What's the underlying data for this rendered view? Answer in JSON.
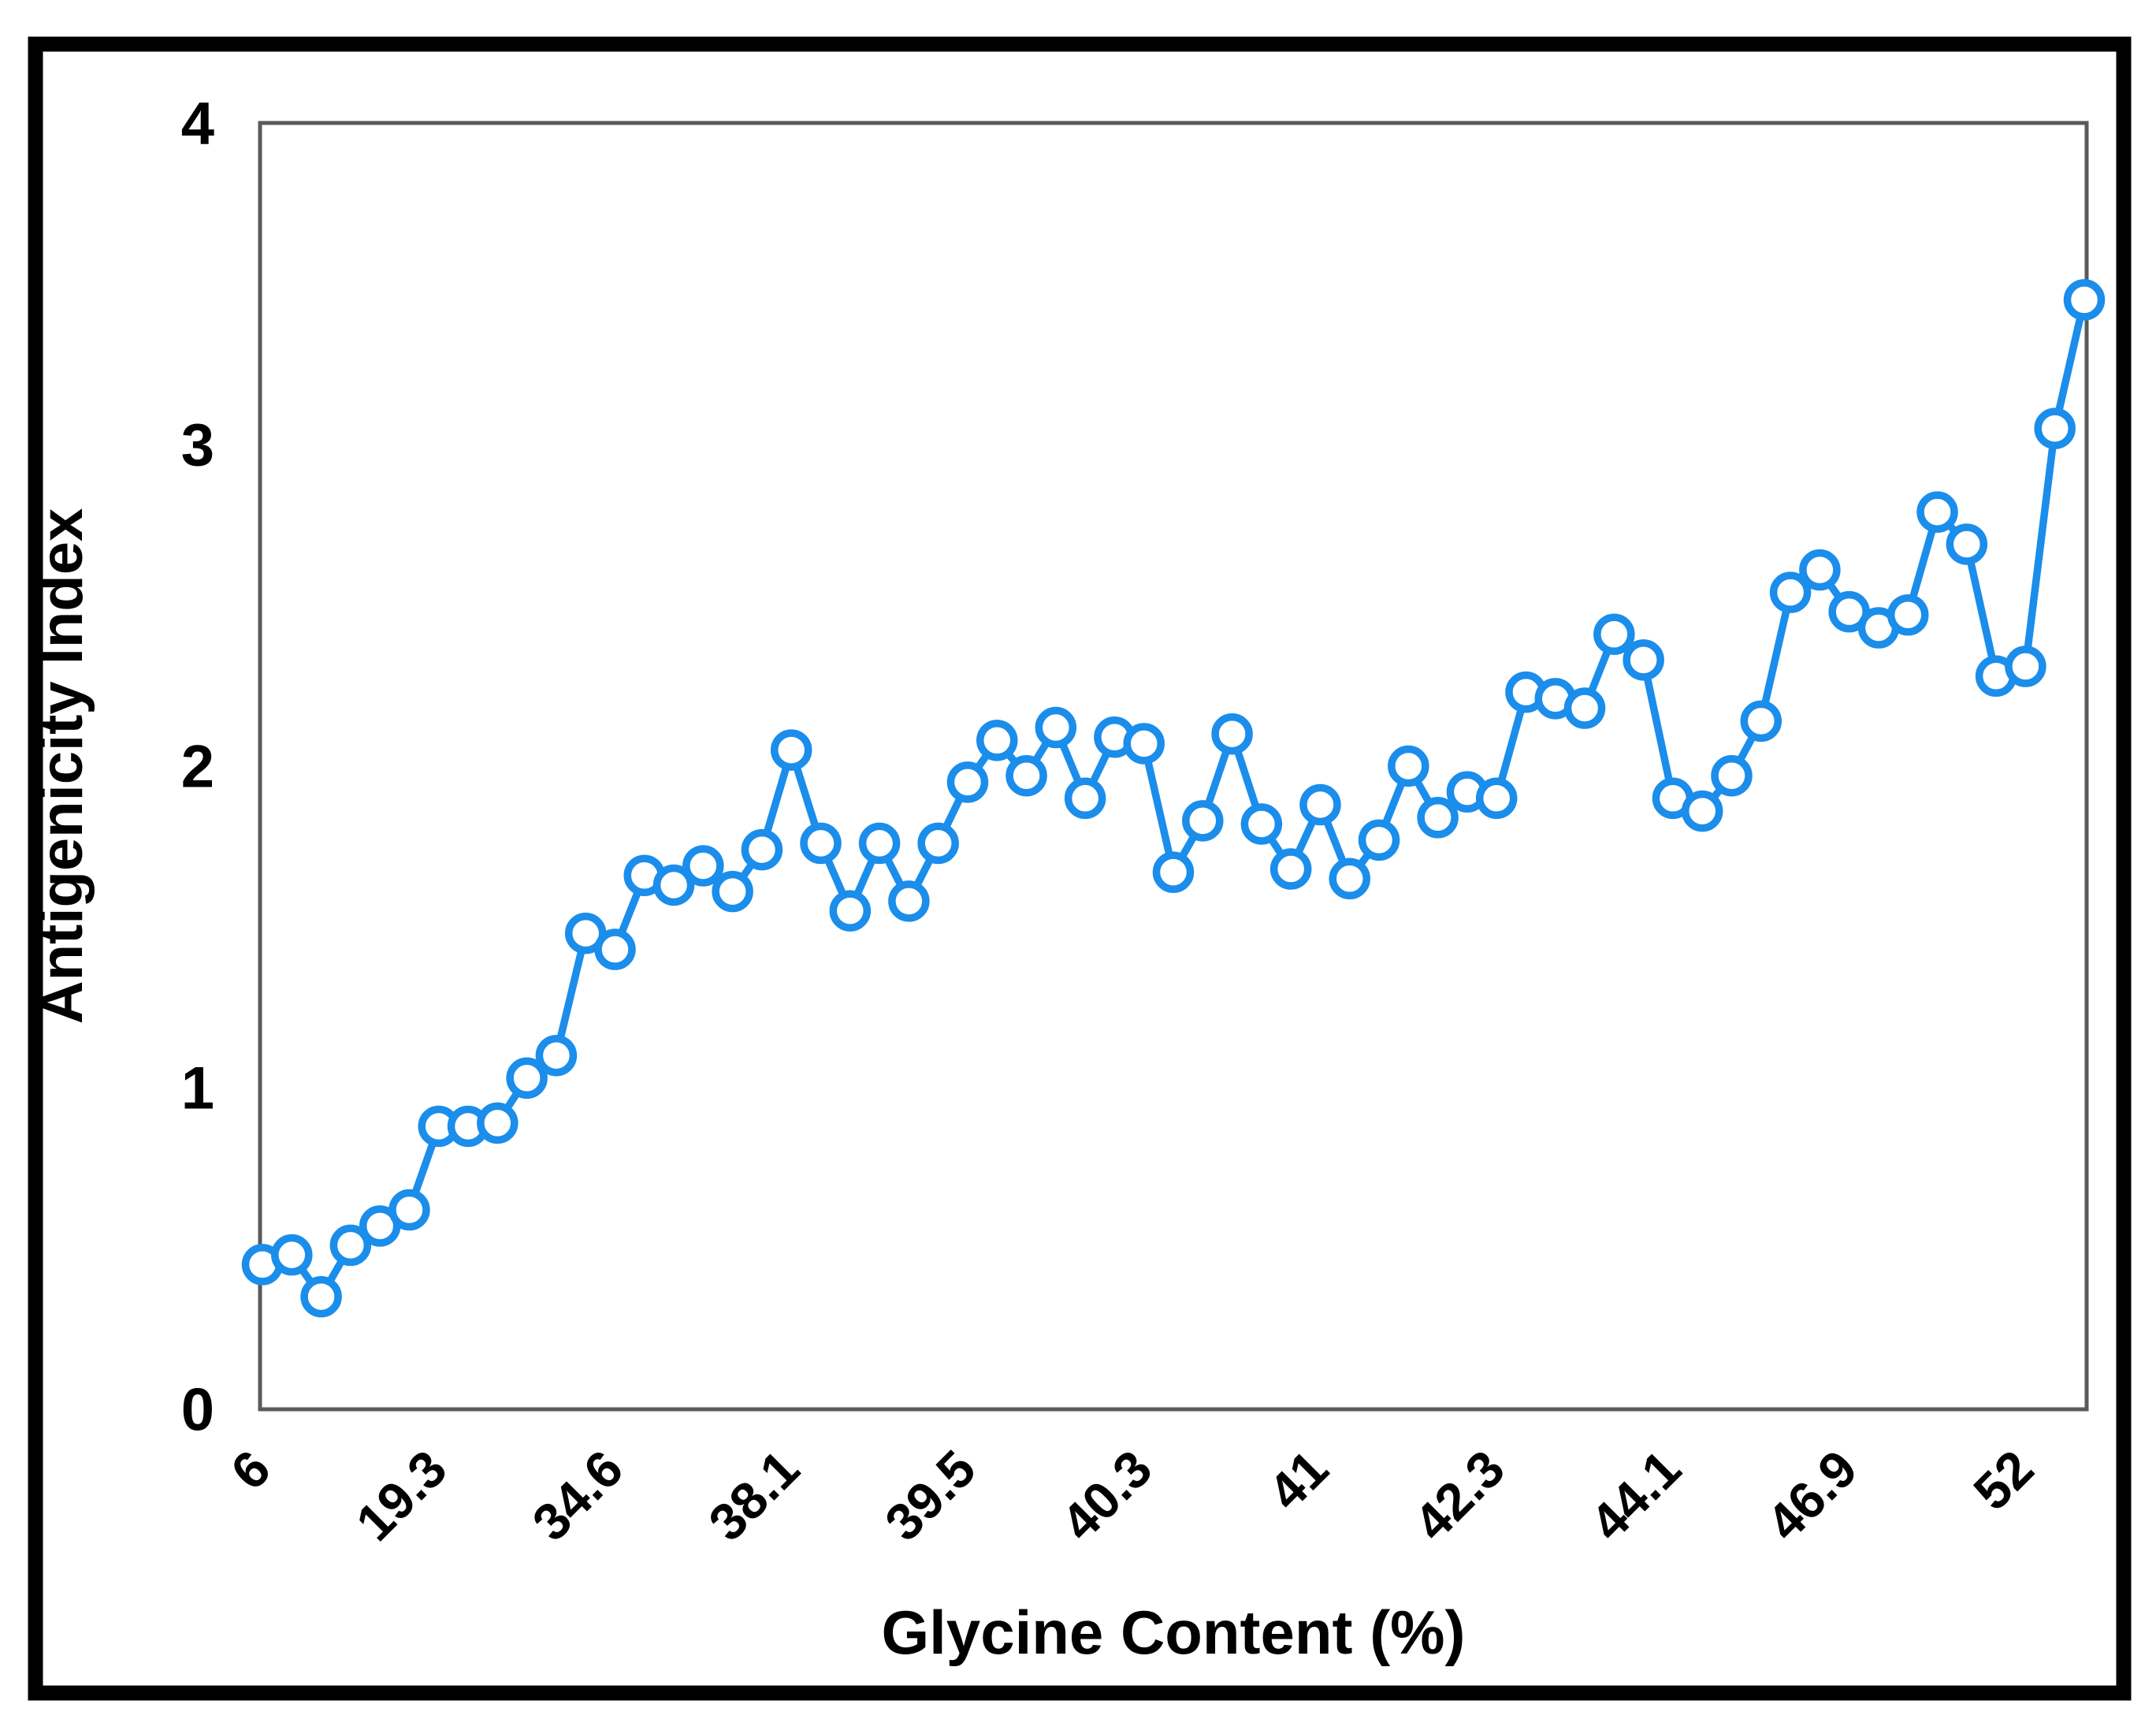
{
  "chart_data": {
    "type": "line",
    "title": "",
    "xlabel": "Glycine Content (%)",
    "ylabel": "Antigenicity Index",
    "ylim": [
      0,
      4
    ],
    "y_ticks": [
      "0",
      "1",
      "2",
      "3",
      "4"
    ],
    "x_tick_labels": [
      "6",
      "19.3",
      "34.6",
      "38.1",
      "39.5",
      "40.3",
      "41",
      "42.3",
      "44.1",
      "46.9",
      "52"
    ],
    "x_tick_every": 6,
    "grid": "off",
    "legend": "none",
    "marker_style": "open-circle",
    "series": [
      {
        "name": "Antigenicity Index",
        "values": [
          0.45,
          0.48,
          0.35,
          0.51,
          0.57,
          0.62,
          0.88,
          0.88,
          0.89,
          1.03,
          1.1,
          1.48,
          1.43,
          1.66,
          1.63,
          1.69,
          1.61,
          1.74,
          2.05,
          1.76,
          1.55,
          1.76,
          1.58,
          1.76,
          1.95,
          2.08,
          1.97,
          2.12,
          1.9,
          2.09,
          2.07,
          1.67,
          1.83,
          2.1,
          1.82,
          1.68,
          1.88,
          1.65,
          1.77,
          2.0,
          1.84,
          1.92,
          1.9,
          2.23,
          2.21,
          2.18,
          2.41,
          2.33,
          1.9,
          1.86,
          1.97,
          2.14,
          2.54,
          2.61,
          2.48,
          2.43,
          2.47,
          2.79,
          2.69,
          2.28,
          2.31,
          3.05,
          3.45
        ]
      }
    ],
    "colors": {
      "line": "#1b8deb",
      "marker_fill": "#ffffff",
      "plot_border": "#5a5a5a",
      "outer_frame": "#000000",
      "text": "#000000"
    }
  }
}
